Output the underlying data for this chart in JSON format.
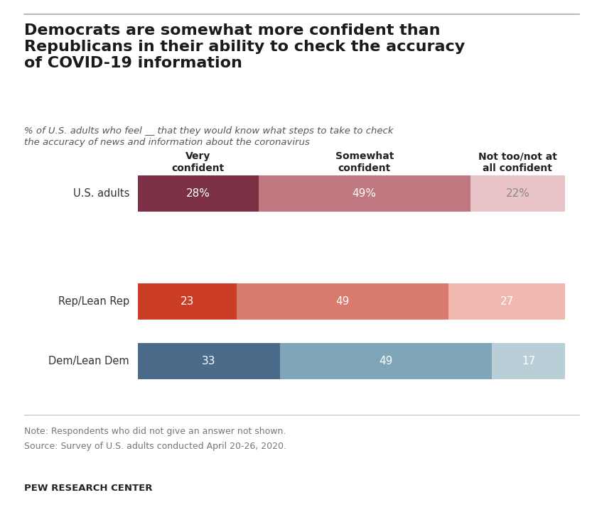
{
  "title": "Democrats are somewhat more confident than\nRepublicans in their ability to check the accuracy\nof COVID-19 information",
  "subtitle": "% of U.S. adults who feel __ that they would know what steps to take to check\nthe accuracy of news and information about the coronavirus",
  "note": "Note: Respondents who did not give an answer not shown.",
  "source": "Source: Survey of U.S. adults conducted April 20-26, 2020.",
  "footer": "PEW RESEARCH CENTER",
  "column_headers": [
    "Very\nconfident",
    "Somewhat\nconfident",
    "Not too/not at\nall confident"
  ],
  "rows": [
    {
      "label": "U.S. adults",
      "values": [
        28,
        49,
        22
      ],
      "colors": [
        "#7b3045",
        "#c07880",
        "#e8c4c8"
      ],
      "text_values": [
        "28%",
        "49%",
        "22%"
      ]
    },
    {
      "label": "Rep/Lean Rep",
      "values": [
        23,
        49,
        27
      ],
      "colors": [
        "#cc3d25",
        "#d97b6e",
        "#f0b8ae"
      ],
      "text_values": [
        "23",
        "49",
        "27"
      ]
    },
    {
      "label": "Dem/Lean Dem",
      "values": [
        33,
        49,
        17
      ],
      "colors": [
        "#4a6b8a",
        "#7fa5b8",
        "#b8cfd8"
      ],
      "text_values": [
        "33",
        "49",
        "17"
      ]
    }
  ],
  "background_color": "#ffffff"
}
